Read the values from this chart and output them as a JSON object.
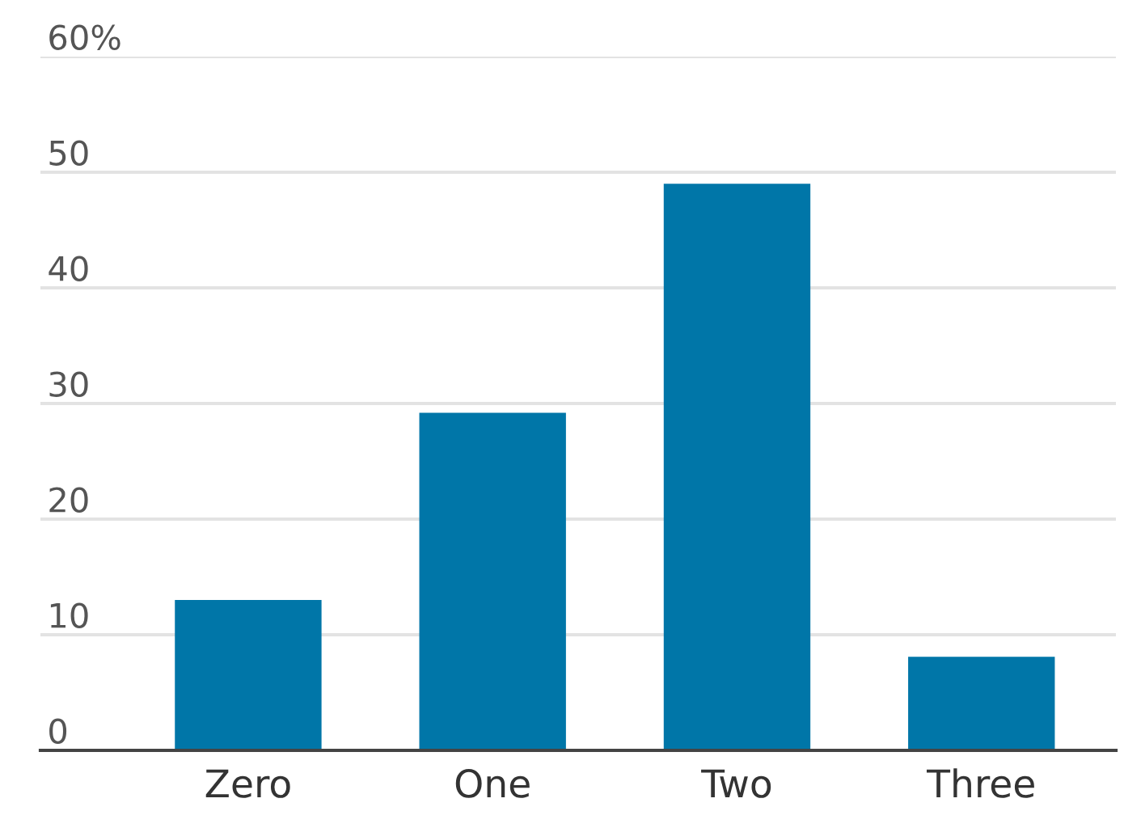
{
  "chart_data": {
    "type": "bar",
    "categories": [
      "Zero",
      "One",
      "Two",
      "Three"
    ],
    "values": [
      13,
      29.2,
      49,
      8.1
    ],
    "color": "#0076a8",
    "ylim": [
      0,
      60
    ],
    "yticks": [
      0,
      10,
      20,
      30,
      40,
      50,
      {
        "value": 60,
        "label": "60%"
      }
    ],
    "grid": "y"
  }
}
